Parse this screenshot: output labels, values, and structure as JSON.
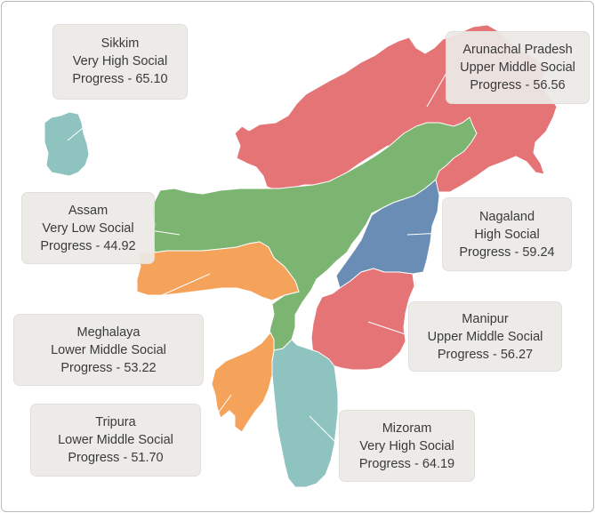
{
  "map": {
    "colors": {
      "very_high": "#8fc3bf",
      "high": "#6a8db5",
      "upper_middle": "#e57477",
      "lower_middle": "#f5a25a",
      "very_low": "#7cb572"
    },
    "regions": [
      {
        "id": "sikkim",
        "name": "Sikkim",
        "category": "Very High Social",
        "prefix": "Progress - ",
        "value": "65.10",
        "color": "#8fc3bf"
      },
      {
        "id": "arunachal",
        "name": "Arunachal Pradesh",
        "category": "Upper Middle Social",
        "prefix": "Progress - ",
        "value": "56.56",
        "color": "#e57477"
      },
      {
        "id": "assam",
        "name": "Assam",
        "category": "Very Low Social",
        "prefix": "Progress - ",
        "value": "44.92",
        "color": "#7cb572"
      },
      {
        "id": "nagaland",
        "name": "Nagaland",
        "category": "High Social",
        "prefix": "Progress - ",
        "value": "59.24",
        "color": "#6a8db5"
      },
      {
        "id": "meghalaya",
        "name": "Meghalaya",
        "category": "Lower Middle Social",
        "prefix": "Progress - ",
        "value": "53.22",
        "color": "#f5a25a"
      },
      {
        "id": "manipur",
        "name": "Manipur",
        "category": "Upper Middle Social",
        "prefix": "Progress - ",
        "value": "56.27",
        "color": "#e57477"
      },
      {
        "id": "tripura",
        "name": "Tripura",
        "category": "Lower Middle Social",
        "prefix": "Progress - ",
        "value": "51.70",
        "color": "#f5a25a"
      },
      {
        "id": "mizoram",
        "name": "Mizoram",
        "category": "Very High Social",
        "prefix": "Progress - ",
        "value": "64.19",
        "color": "#8fc3bf"
      }
    ]
  }
}
